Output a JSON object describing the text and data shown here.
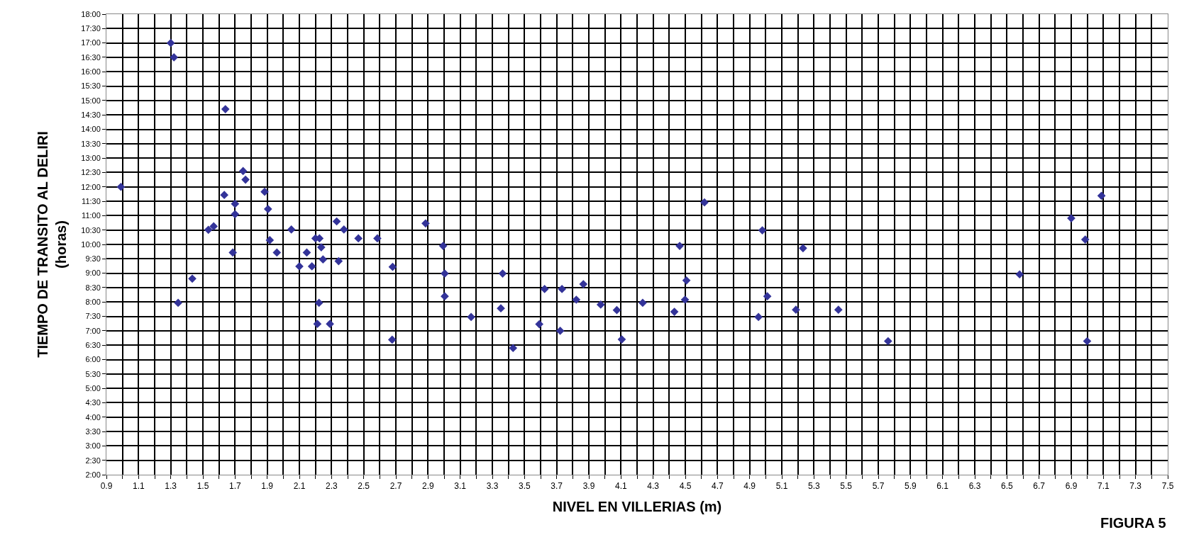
{
  "chart_data": {
    "type": "scatter",
    "xlabel": "NIVEL EN VILLERIAS (m)",
    "ylabel": "TIEMPO DE TRANSITO AL DELIRI\n(horas)",
    "annotations": [
      "FIGURA 5"
    ],
    "x": [
      0.99,
      1.3,
      1.32,
      1.64,
      1.75,
      1.765,
      1.633,
      1.7,
      1.7,
      1.884,
      1.905,
      1.534,
      1.567,
      1.916,
      1.96,
      2.05,
      1.686,
      2.2,
      2.225,
      2.236,
      2.146,
      2.247,
      2.1,
      2.178,
      2.344,
      2.332,
      2.377,
      2.467,
      2.585,
      1.434,
      1.346,
      2.222,
      2.212,
      2.29,
      2.677,
      2.68,
      2.885,
      2.994,
      3.004,
      3.364,
      3.004,
      3.168,
      3.353,
      3.429,
      3.592,
      3.625,
      3.722,
      3.733,
      3.822,
      3.866,
      3.974,
      4.074,
      4.105,
      4.235,
      4.432,
      4.498,
      4.507,
      4.465,
      4.619,
      4.979,
      5.01,
      4.955,
      5.232,
      5.188,
      5.452,
      5.761,
      6.579,
      6.9,
      7.088,
      6.987,
      6.999
    ],
    "series": [
      {
        "color": "#333399",
        "values": [
          12.0,
          17.0,
          16.5,
          14.7,
          12.55,
          12.25,
          11.72,
          11.41,
          11.05,
          11.83,
          11.23,
          10.51,
          10.63,
          10.15,
          9.72,
          10.52,
          9.72,
          10.21,
          10.21,
          9.9,
          9.72,
          9.48,
          9.24,
          9.24,
          9.42,
          10.8,
          10.52,
          10.21,
          10.21,
          8.81,
          7.97,
          7.97,
          7.24,
          7.24,
          6.69,
          9.22,
          10.73,
          9.95,
          8.99,
          8.99,
          8.2,
          7.48,
          7.78,
          6.4,
          7.23,
          8.45,
          7.0,
          8.45,
          8.08,
          8.62,
          7.91,
          7.72,
          6.7,
          7.97,
          7.66,
          8.08,
          8.75,
          9.95,
          11.46,
          10.49,
          8.2,
          7.48,
          9.87,
          7.73,
          7.73,
          6.64,
          8.96,
          10.91,
          11.69,
          10.17,
          6.64
        ]
      }
    ],
    "marker": "diamond",
    "grid": true,
    "xlim": [
      0.9,
      7.5
    ],
    "ylim": [
      2,
      18
    ],
    "xticks": [
      0.9,
      {
        "value": 1.0,
        "label": null
      },
      1.1,
      {
        "value": 1.2,
        "label": null
      },
      1.3,
      {
        "value": 1.4,
        "label": null
      },
      1.5,
      {
        "value": 1.6,
        "label": null
      },
      1.7,
      {
        "value": 1.8,
        "label": null
      },
      1.9,
      {
        "value": 2.0,
        "label": null
      },
      2.1,
      {
        "value": 2.2,
        "label": null
      },
      2.3,
      {
        "value": 2.4,
        "label": null
      },
      2.5,
      {
        "value": 2.6,
        "label": null
      },
      2.7,
      {
        "value": 2.8,
        "label": null
      },
      2.9,
      {
        "value": 3.0,
        "label": null
      },
      3.1,
      {
        "value": 3.2,
        "label": null
      },
      3.3,
      {
        "value": 3.4,
        "label": null
      },
      3.5,
      {
        "value": 3.6,
        "label": null
      },
      3.7,
      {
        "value": 3.8,
        "label": null
      },
      3.9,
      {
        "value": 4.0,
        "label": null
      },
      4.1,
      {
        "value": 4.2,
        "label": null
      },
      4.3,
      {
        "value": 4.4,
        "label": null
      },
      4.5,
      {
        "value": 4.6,
        "label": null
      },
      4.7,
      {
        "value": 4.8,
        "label": null
      },
      4.9,
      {
        "value": 5.0,
        "label": null
      },
      5.1,
      {
        "value": 5.2,
        "label": null
      },
      5.3,
      {
        "value": 5.4,
        "label": null
      },
      5.5,
      {
        "value": 5.6,
        "label": null
      },
      5.7,
      {
        "value": 5.8,
        "label": null
      },
      5.9,
      {
        "value": 6.0,
        "label": null
      },
      6.1,
      {
        "value": 6.2,
        "label": null
      },
      6.3,
      {
        "value": 6.4,
        "label": null
      },
      6.5,
      {
        "value": 6.6,
        "label": null
      },
      6.7,
      {
        "value": 6.8,
        "label": null
      },
      6.9,
      {
        "value": 7.0,
        "label": null
      },
      7.1,
      {
        "value": 7.2,
        "label": null
      },
      7.3,
      {
        "value": 7.4,
        "label": null
      },
      7.5
    ],
    "yticks": [
      {
        "value": 2,
        "label": "2:00"
      },
      {
        "value": 2.5,
        "label": "2:30"
      },
      {
        "value": 3,
        "label": "3:00"
      },
      {
        "value": 3.5,
        "label": "3:30"
      },
      {
        "value": 4,
        "label": "4:00"
      },
      {
        "value": 4.5,
        "label": "4:30"
      },
      {
        "value": 5,
        "label": "5:00"
      },
      {
        "value": 5.5,
        "label": "5:30"
      },
      {
        "value": 6,
        "label": "6:00"
      },
      {
        "value": 6.5,
        "label": "6:30"
      },
      {
        "value": 7,
        "label": "7:00"
      },
      {
        "value": 7.5,
        "label": "7:30"
      },
      {
        "value": 8,
        "label": "8:00"
      },
      {
        "value": 8.5,
        "label": "8:30"
      },
      {
        "value": 9,
        "label": "9:00"
      },
      {
        "value": 9.5,
        "label": "9:30"
      },
      {
        "value": 10,
        "label": "10:00"
      },
      {
        "value": 10.5,
        "label": "10:30"
      },
      {
        "value": 11,
        "label": "11:00"
      },
      {
        "value": 11.5,
        "label": "11:30"
      },
      {
        "value": 12,
        "label": "12:00"
      },
      {
        "value": 12.5,
        "label": "12:30"
      },
      {
        "value": 13,
        "label": "13:00"
      },
      {
        "value": 13.5,
        "label": "13:30"
      },
      {
        "value": 14,
        "label": "14:00"
      },
      {
        "value": 14.5,
        "label": "14:30"
      },
      {
        "value": 15,
        "label": "15:00"
      },
      {
        "value": 15.5,
        "label": "15:30"
      },
      {
        "value": 16,
        "label": "16:00"
      },
      {
        "value": 16.5,
        "label": "16:30"
      },
      {
        "value": 17,
        "label": "17:00"
      },
      {
        "value": 17.5,
        "label": "17:30"
      },
      {
        "value": 18,
        "label": "18:00"
      }
    ]
  }
}
